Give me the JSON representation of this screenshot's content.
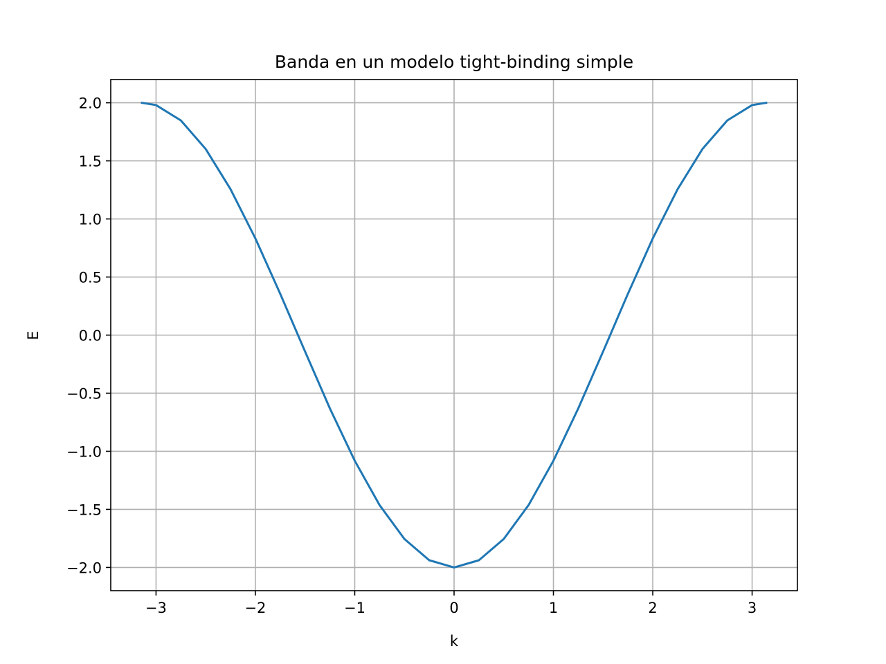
{
  "chart_data": {
    "type": "line",
    "title": "Banda en un modelo tight-binding simple",
    "xlabel": "k",
    "ylabel": "E",
    "xlim": [
      -3.4558,
      3.4558
    ],
    "ylim": [
      -2.2,
      2.2
    ],
    "grid": true,
    "legend": "none",
    "x_ticks": [
      -3,
      -2,
      -1,
      0,
      1,
      2,
      3
    ],
    "x_tick_labels": [
      "−3",
      "−2",
      "−1",
      "0",
      "1",
      "2",
      "3"
    ],
    "y_ticks": [
      -2.0,
      -1.5,
      -1.0,
      -0.5,
      0.0,
      0.5,
      1.0,
      1.5,
      2.0
    ],
    "y_tick_labels": [
      "−2.0",
      "−1.5",
      "−1.0",
      "−0.5",
      "0.0",
      "0.5",
      "1.0",
      "1.5",
      "2.0"
    ],
    "series": [
      {
        "color": "#1f77b4",
        "x": [
          -3.1416,
          -3.0,
          -2.75,
          -2.5,
          -2.25,
          -2.0,
          -1.75,
          -1.5,
          -1.25,
          -1.0,
          -0.75,
          -0.5,
          -0.25,
          0.0,
          0.25,
          0.5,
          0.75,
          1.0,
          1.25,
          1.5,
          1.75,
          2.0,
          2.25,
          2.5,
          2.75,
          3.0,
          3.1416
        ],
        "y": [
          2.0,
          1.98,
          1.848,
          1.602,
          1.256,
          0.832,
          0.356,
          -0.141,
          -0.631,
          -1.081,
          -1.463,
          -1.755,
          -1.938,
          -2.0,
          -1.938,
          -1.755,
          -1.463,
          -1.081,
          -0.631,
          -0.141,
          0.356,
          0.832,
          1.256,
          1.602,
          1.848,
          1.98,
          2.0
        ]
      }
    ]
  }
}
